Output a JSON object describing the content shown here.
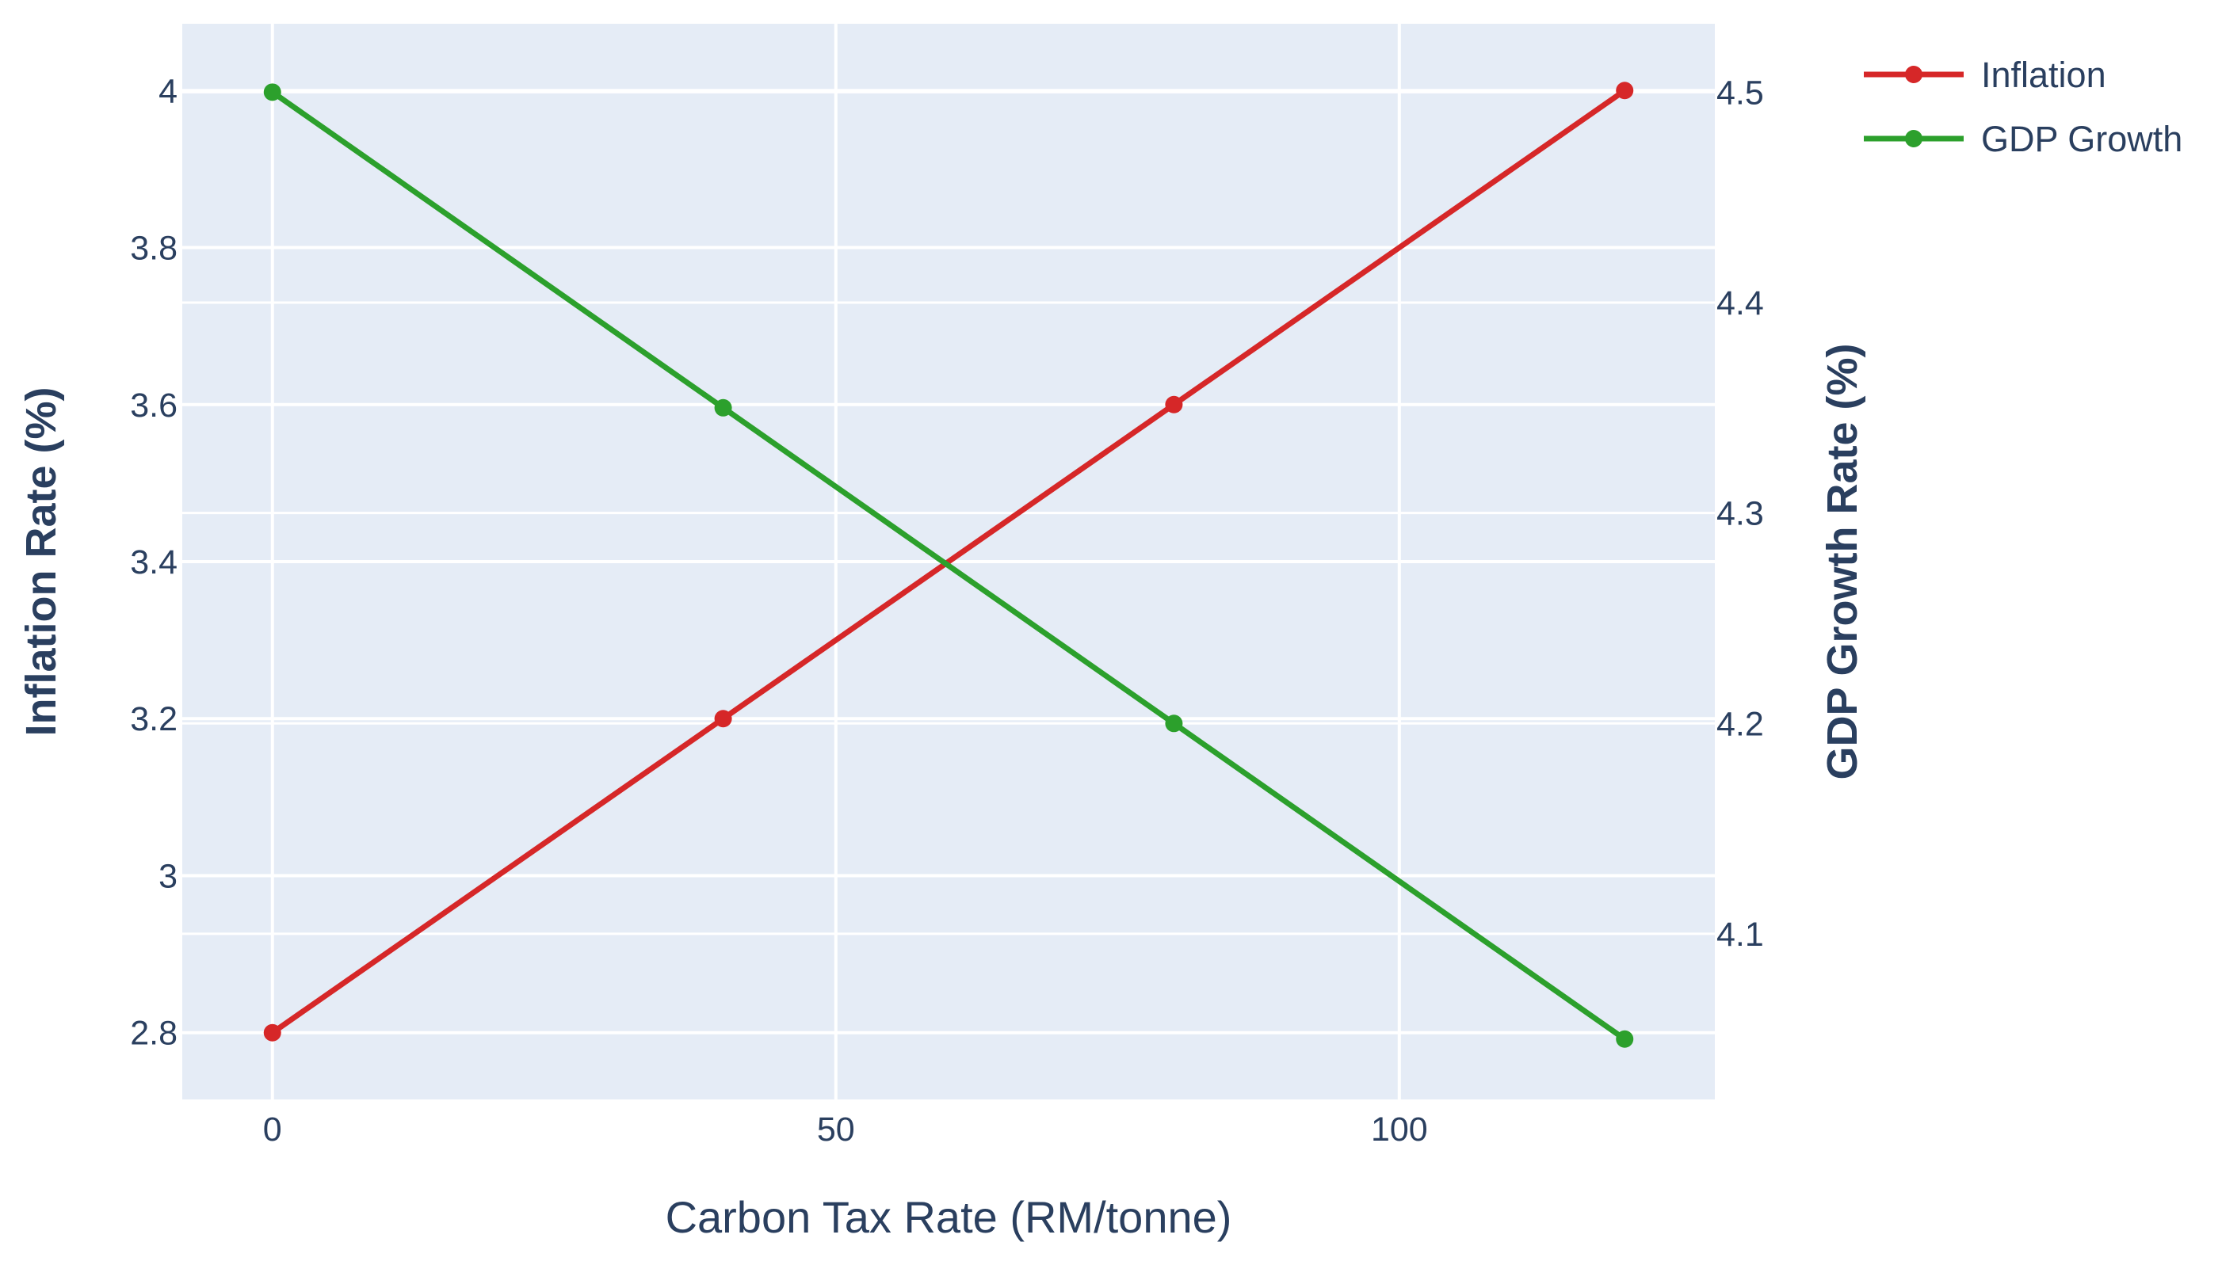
{
  "chart_data": {
    "type": "line",
    "x": [
      0,
      40,
      80,
      120
    ],
    "xlabel": "Carbon Tax Rate (RM/tonne)",
    "xlim": [
      -8,
      128
    ],
    "xticks": [
      0,
      50,
      100
    ],
    "y_left": {
      "label": "Inflation Rate (%)",
      "lim": [
        2.715,
        4.085
      ],
      "ticks": [
        2.8,
        3,
        3.2,
        3.4,
        3.6,
        3.8,
        4
      ]
    },
    "y_right": {
      "label": "GDP Growth Rate (%)",
      "lim": [
        4.0213,
        4.5325
      ],
      "ticks": [
        4.1,
        4.2,
        4.3,
        4.4,
        4.5
      ]
    },
    "series": [
      {
        "name": "Inflation",
        "axis": "left",
        "color": "#d62728",
        "values": [
          2.8,
          3.2,
          3.6,
          4.0
        ]
      },
      {
        "name": "GDP Growth",
        "axis": "right",
        "color": "#2ca02c",
        "values": [
          4.5,
          4.35,
          4.2,
          4.05
        ]
      }
    ],
    "grid": true,
    "legend": "top-right",
    "plot_background": "#e5ecf6"
  }
}
